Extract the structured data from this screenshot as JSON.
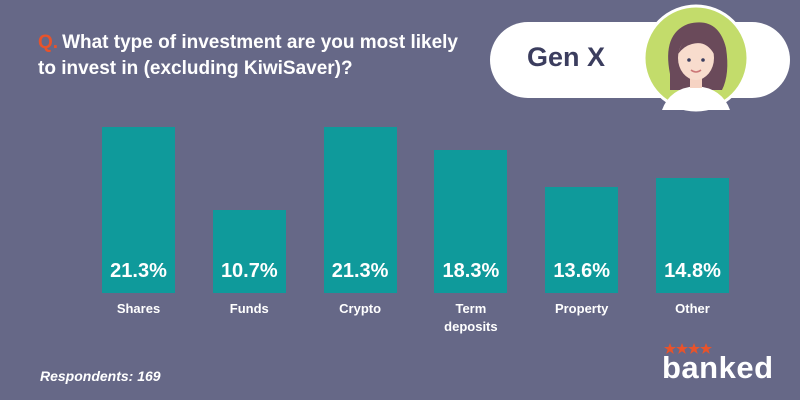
{
  "chart_data": {
    "type": "bar",
    "question_marker": "Q.",
    "title": "What type of investment are you most likely to invest in (excluding KiwiSaver)?",
    "badge": "Gen X",
    "categories": [
      "Shares",
      "Funds",
      "Crypto",
      "Term deposits",
      "Property",
      "Other"
    ],
    "values": [
      21.3,
      10.7,
      21.3,
      18.3,
      13.6,
      14.8
    ],
    "value_labels": [
      "21.3%",
      "10.7%",
      "21.3%",
      "18.3%",
      "13.6%",
      "14.8%"
    ],
    "color": "#0f9a9b",
    "footnote": "Respondents: 169",
    "logo": "banked"
  }
}
